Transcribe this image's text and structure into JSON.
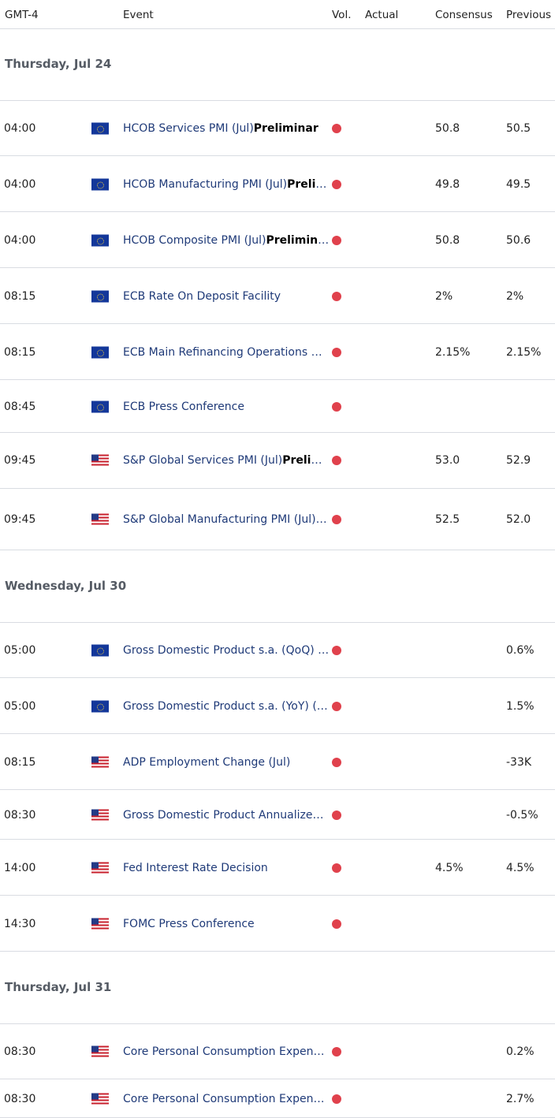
{
  "header": {
    "timezone": "GMT-4",
    "event": "Event",
    "vol": "Vol.",
    "actual": "Actual",
    "consensus": "Consensus",
    "previous": "Previous"
  },
  "days": [
    {
      "label": "Thursday, Jul 24"
    },
    {
      "label": "Wednesday, Jul 30"
    },
    {
      "label": "Thursday, Jul 31"
    }
  ],
  "rows": [
    {
      "time": "04:00",
      "flag": "eu",
      "event": "HCOB Services PMI (Jul)",
      "tag": "Preliminar",
      "consensus": "50.8",
      "previous": "50.5"
    },
    {
      "time": "04:00",
      "flag": "eu",
      "event": "HCOB Manufacturing PMI (Jul)",
      "tag": "Prelim…",
      "consensus": "49.8",
      "previous": "49.5"
    },
    {
      "time": "04:00",
      "flag": "eu",
      "event": "HCOB Composite PMI (Jul)",
      "tag": "Preliminar",
      "consensus": "50.8",
      "previous": "50.6"
    },
    {
      "time": "08:15",
      "flag": "eu",
      "event": "ECB Rate On Deposit Facility",
      "tag": "",
      "consensus": "2%",
      "previous": "2%"
    },
    {
      "time": "08:15",
      "flag": "eu",
      "event": "ECB Main Refinancing Operations Ra…",
      "tag": "",
      "consensus": "2.15%",
      "previous": "2.15%"
    },
    {
      "time": "08:45",
      "flag": "eu",
      "event": "ECB Press Conference",
      "tag": "",
      "consensus": "",
      "previous": ""
    },
    {
      "time": "09:45",
      "flag": "us",
      "event": "S&P Global Services PMI (Jul)",
      "tag": "Prelimi…",
      "consensus": "53.0",
      "previous": "52.9"
    },
    {
      "time": "09:45",
      "flag": "us",
      "event": "S&P Global Manufacturing PMI (Jul)",
      "tag": "P…",
      "consensus": "52.5",
      "previous": "52.0"
    },
    {
      "time": "05:00",
      "flag": "eu",
      "event": "Gross Domestic Product s.a. (QoQ) (…",
      "tag": "",
      "consensus": "",
      "previous": "0.6%"
    },
    {
      "time": "05:00",
      "flag": "eu",
      "event": "Gross Domestic Product s.a. (YoY) (Q…",
      "tag": "",
      "consensus": "",
      "previous": "1.5%"
    },
    {
      "time": "08:15",
      "flag": "us",
      "event": "ADP Employment Change (Jul)",
      "tag": "",
      "consensus": "",
      "previous": "-33K"
    },
    {
      "time": "08:30",
      "flag": "us",
      "event": "Gross Domestic Product Annualized …",
      "tag": "",
      "consensus": "",
      "previous": "-0.5%"
    },
    {
      "time": "14:00",
      "flag": "us",
      "event": "Fed Interest Rate Decision",
      "tag": "",
      "consensus": "4.5%",
      "previous": "4.5%"
    },
    {
      "time": "14:30",
      "flag": "us",
      "event": "FOMC Press Conference",
      "tag": "",
      "consensus": "",
      "previous": ""
    },
    {
      "time": "08:30",
      "flag": "us",
      "event": "Core Personal Consumption Expendi…",
      "tag": "",
      "consensus": "",
      "previous": "0.2%"
    },
    {
      "time": "08:30",
      "flag": "us",
      "event": "Core Personal Consumption Expendi…",
      "tag": "",
      "consensus": "",
      "previous": "2.7%"
    }
  ],
  "colors": {
    "volatility_high": "#e0414c",
    "event_text": "#1f3a78"
  }
}
